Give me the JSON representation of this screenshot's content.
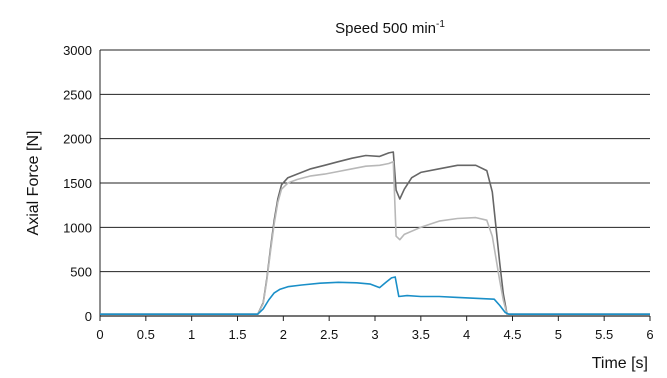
{
  "chart_data": {
    "type": "line",
    "title": "Speed 500 min",
    "title_superscript": "-1",
    "xlabel": "Time [s]",
    "ylabel": "Axial Force [N]",
    "xlim": [
      0,
      6
    ],
    "ylim": [
      0,
      3000
    ],
    "x_ticks": [
      "0",
      "0.5",
      "1",
      "1.5",
      "2",
      "2.5",
      "3",
      "3.5",
      "4",
      "4.5",
      "5",
      "5.5",
      "6"
    ],
    "y_ticks": [
      "0",
      "500",
      "1000",
      "1500",
      "2000",
      "2500",
      "3000"
    ],
    "grid": "horizontal",
    "legend": "none",
    "series": [
      {
        "color": "#666666",
        "x": [
          0,
          1.72,
          1.78,
          1.82,
          1.86,
          1.9,
          1.94,
          1.98,
          2.05,
          2.15,
          2.3,
          2.45,
          2.6,
          2.75,
          2.9,
          3.05,
          3.15,
          3.2,
          3.23,
          3.27,
          3.32,
          3.4,
          3.5,
          3.7,
          3.9,
          4.1,
          4.22,
          4.28,
          4.32,
          4.36,
          4.4,
          4.44,
          6
        ],
        "y": [
          20,
          20,
          150,
          420,
          760,
          1080,
          1320,
          1480,
          1560,
          1600,
          1660,
          1700,
          1740,
          1780,
          1810,
          1800,
          1840,
          1850,
          1420,
          1320,
          1430,
          1560,
          1620,
          1660,
          1700,
          1700,
          1640,
          1400,
          1000,
          600,
          250,
          20,
          20
        ]
      },
      {
        "color": "#b8b8b8",
        "x": [
          0,
          1.72,
          1.78,
          1.82,
          1.86,
          1.9,
          1.94,
          1.98,
          2.05,
          2.15,
          2.3,
          2.45,
          2.6,
          2.75,
          2.9,
          3.05,
          3.15,
          3.2,
          3.23,
          3.27,
          3.32,
          3.5,
          3.7,
          3.9,
          4.1,
          4.22,
          4.28,
          4.32,
          4.36,
          4.4,
          4.44,
          6
        ],
        "y": [
          20,
          20,
          140,
          400,
          730,
          1040,
          1280,
          1430,
          1500,
          1540,
          1580,
          1600,
          1630,
          1660,
          1690,
          1700,
          1720,
          1740,
          900,
          860,
          920,
          1000,
          1070,
          1100,
          1110,
          1080,
          900,
          650,
          400,
          180,
          20,
          20
        ]
      },
      {
        "color": "#1a8fc8",
        "x": [
          0,
          1.72,
          1.78,
          1.84,
          1.9,
          1.96,
          2.05,
          2.2,
          2.4,
          2.6,
          2.8,
          2.95,
          3.05,
          3.12,
          3.18,
          3.22,
          3.26,
          3.35,
          3.5,
          3.7,
          3.9,
          4.1,
          4.3,
          4.36,
          4.42,
          4.46,
          6
        ],
        "y": [
          20,
          20,
          80,
          180,
          260,
          300,
          330,
          350,
          370,
          380,
          375,
          360,
          320,
          380,
          430,
          440,
          220,
          230,
          220,
          220,
          210,
          200,
          190,
          120,
          40,
          20,
          20
        ]
      }
    ]
  }
}
